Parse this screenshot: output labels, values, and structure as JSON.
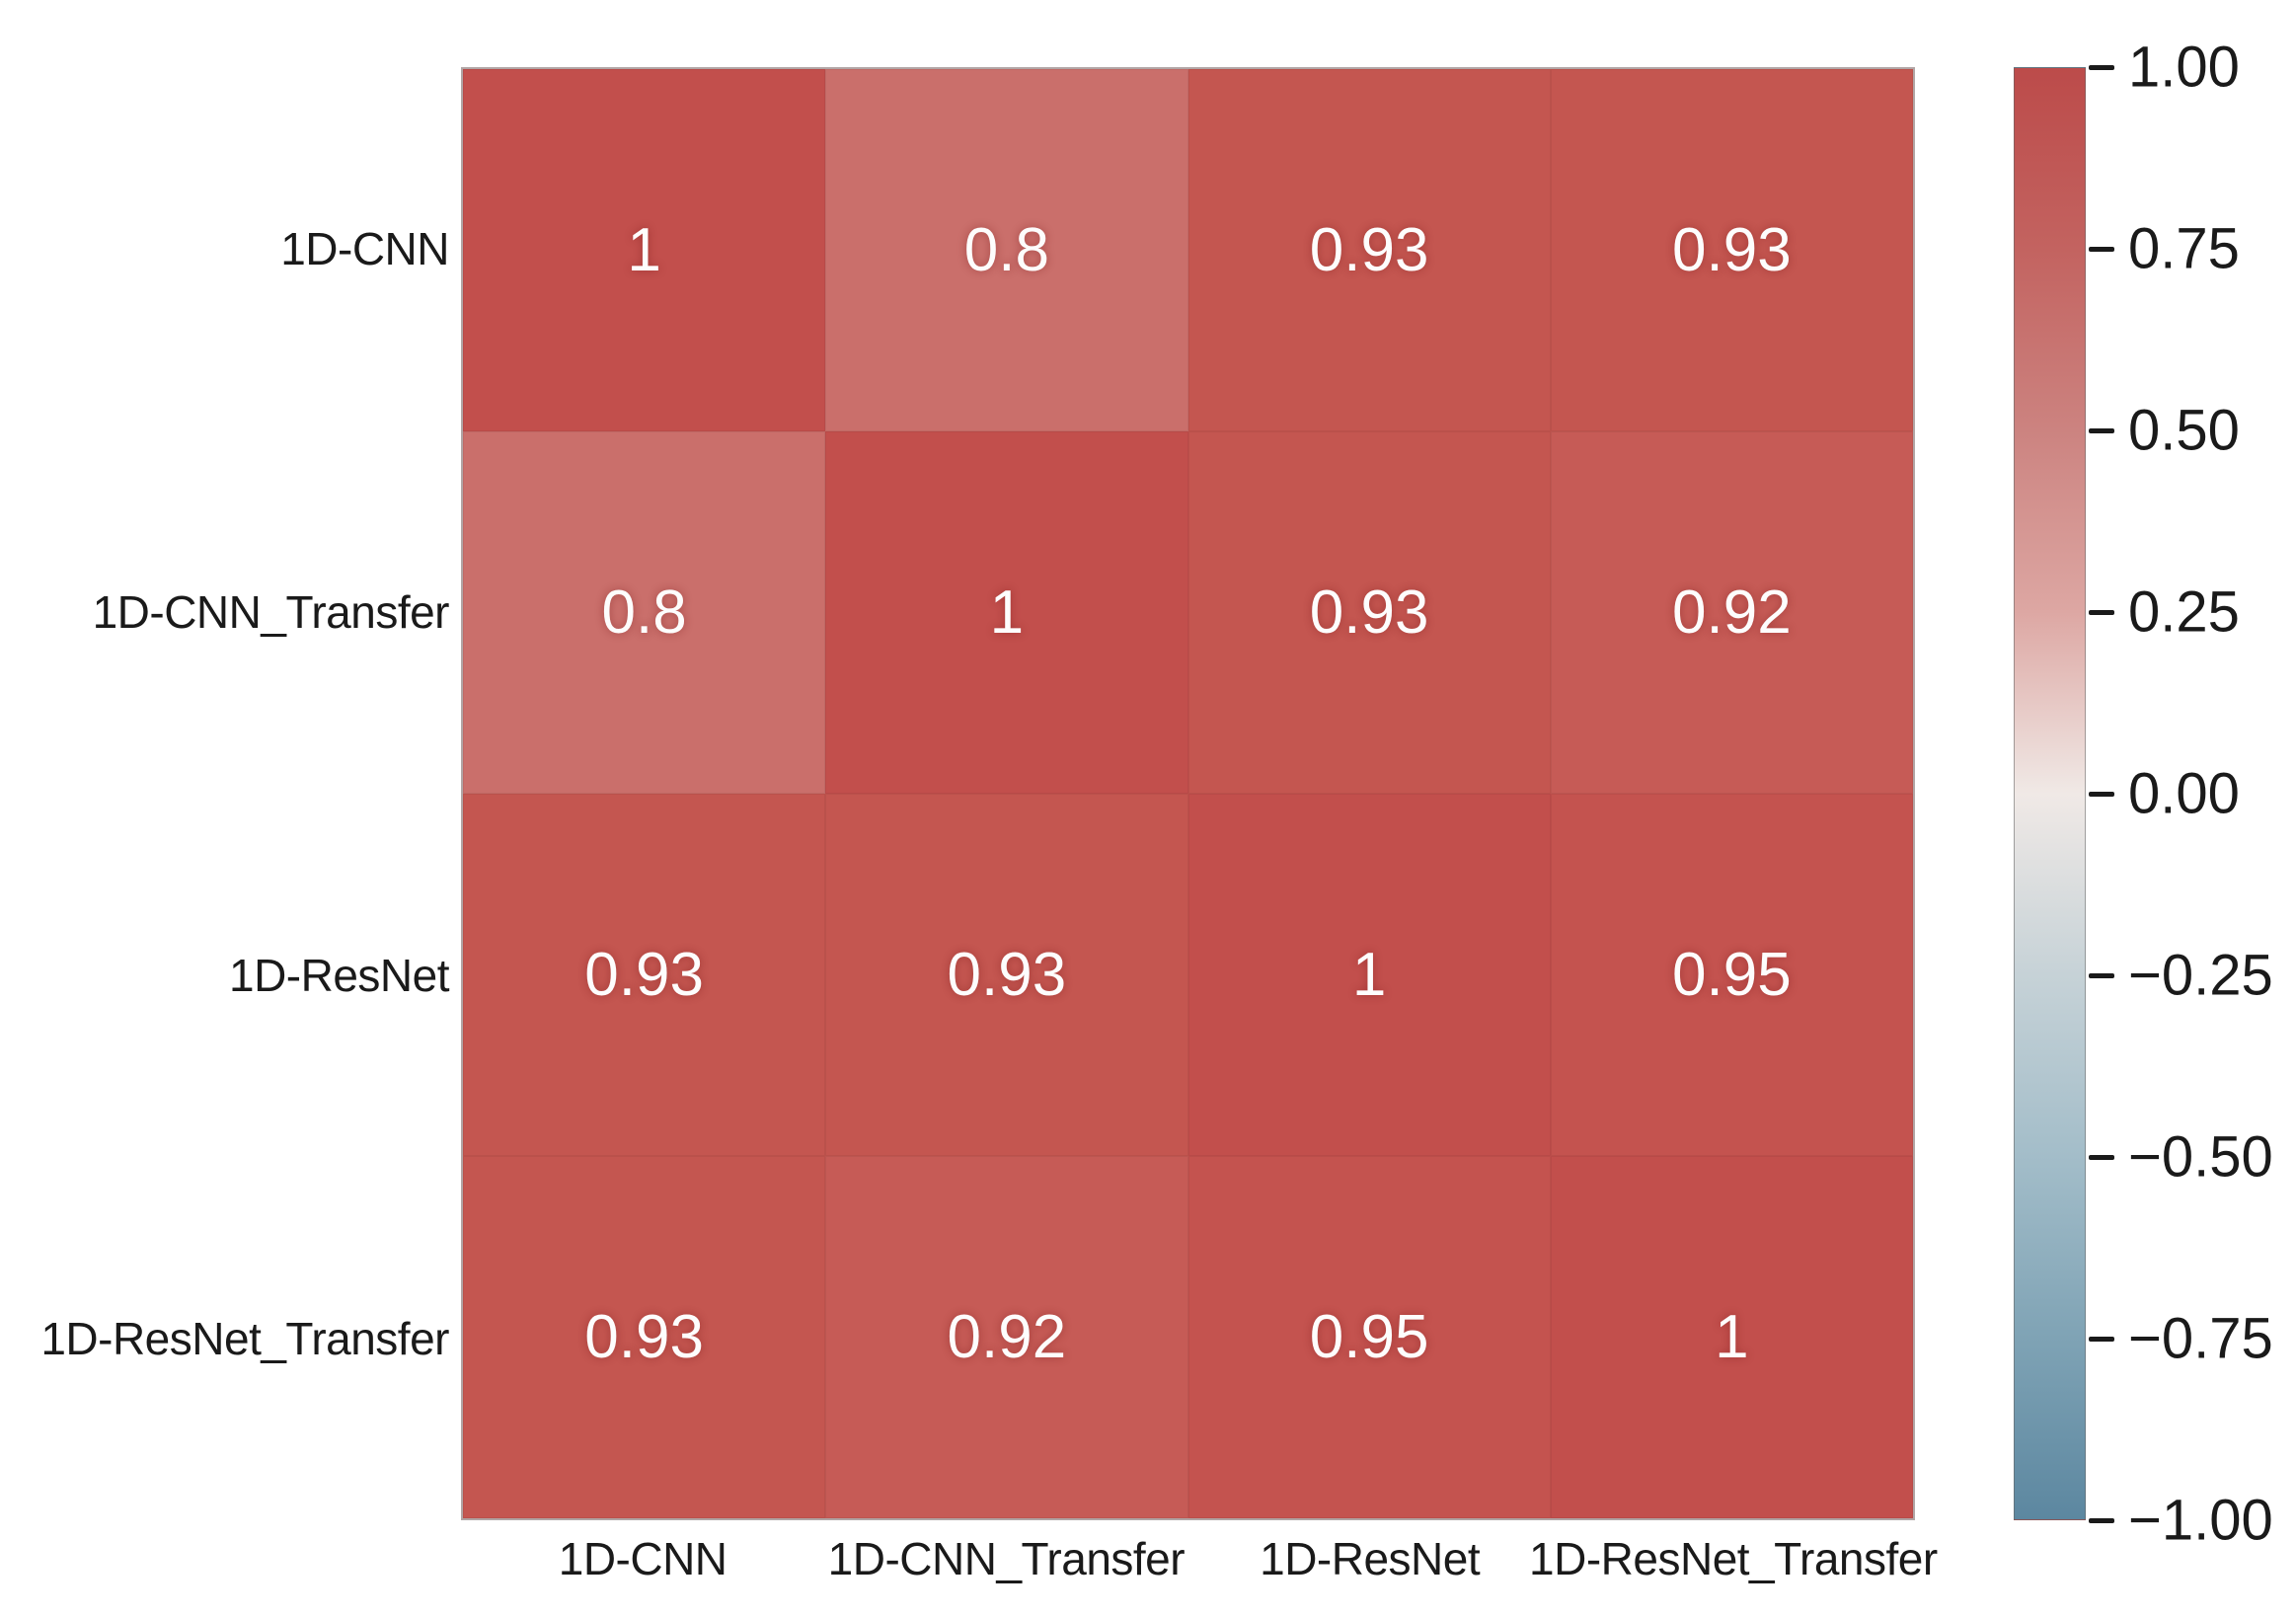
{
  "figure": {
    "background": "#ffffff"
  },
  "chart_data": {
    "type": "heatmap",
    "title": "",
    "xlabel": "",
    "ylabel": "",
    "categories": [
      "1D-CNN",
      "1D-CNN_Transfer",
      "1D-ResNet",
      "1D-ResNet_Transfer"
    ],
    "matrix": [
      [
        1,
        0.8,
        0.93,
        0.93
      ],
      [
        0.8,
        1,
        0.93,
        0.92
      ],
      [
        0.93,
        0.93,
        1,
        0.95
      ],
      [
        0.93,
        0.92,
        0.95,
        1
      ]
    ],
    "annotations": [
      [
        "1",
        "0.8",
        "0.93",
        "0.93"
      ],
      [
        "0.8",
        "1",
        "0.93",
        "0.92"
      ],
      [
        "0.93",
        "0.93",
        "1",
        "0.95"
      ],
      [
        "0.93",
        "0.92",
        "0.95",
        "1"
      ]
    ],
    "cell_colors": [
      [
        "#c24f4c",
        "#ca6f6b",
        "#c45650",
        "#c45650"
      ],
      [
        "#ca6f6b",
        "#c24f4c",
        "#c45650",
        "#c65b56"
      ],
      [
        "#c45650",
        "#c45650",
        "#c24f4c",
        "#c4534f"
      ],
      [
        "#c45650",
        "#c65b56",
        "#c4534f",
        "#c24f4c"
      ]
    ],
    "vmin": -1,
    "vmax": 1,
    "grid": false,
    "annotation_color": "#fdfdfd",
    "label_color": "#1a1a1a",
    "colorbar": {
      "position": "right",
      "tick_labels": [
        "1.00",
        "0.75",
        "0.50",
        "0.25",
        "0.00",
        "−0.25",
        "−0.50",
        "−0.75",
        "−1.00"
      ],
      "gradient_stops": [
        "#bc4b4a",
        "#c36360",
        "#cc8380",
        "#dda7a3",
        "#f0e9e6",
        "#c6d2d7",
        "#a3bdc9",
        "#7fa3b5",
        "#5c87a0"
      ]
    }
  }
}
